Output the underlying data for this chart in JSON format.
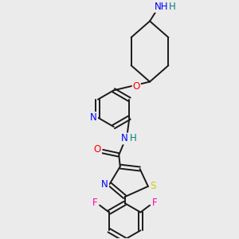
{
  "bg_color": "#ebebeb",
  "atom_colors": {
    "N": "#0000ff",
    "O": "#ff0000",
    "S": "#cccc00",
    "F": "#ff00aa",
    "C": "#000000",
    "H": "#008080"
  },
  "bond_color": "#1a1a1a",
  "bond_width": 1.4
}
